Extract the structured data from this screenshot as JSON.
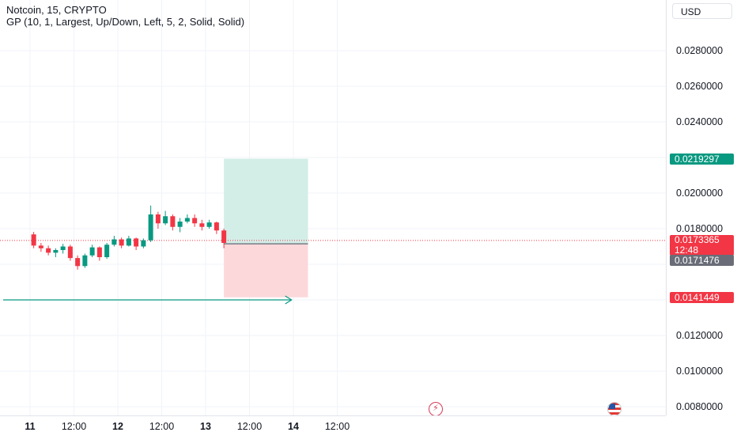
{
  "header": {
    "symbol_line": "Notcoin, 15, CRYPTO",
    "indicator_line": "GP (10, 1, Largest, Up/Down, Left, 5, 2, Solid, Solid)",
    "currency": "USD"
  },
  "colors": {
    "up": "#089981",
    "down": "#f23645",
    "profit_zone": "#d3ede7",
    "loss_zone": "#fcd8db",
    "current_tag": "#f23645",
    "entry_tag": "#6a6d78",
    "target_tag": "#089981",
    "stop_tag": "#f23645",
    "arrow_line": "#089981"
  },
  "price_axis": {
    "ticks": [
      "0.0280000",
      "0.0260000",
      "0.0240000",
      "0.0200000",
      "0.0180000",
      "0.0120000",
      "0.0100000",
      "0.0080000"
    ],
    "tags": {
      "target": "0.0219297",
      "current": "0.0173365",
      "countdown": "12:48",
      "entry": "0.0171476",
      "stop": "0.0141449"
    }
  },
  "time_axis": {
    "ticks": [
      {
        "label": "11",
        "bold": true
      },
      {
        "label": "12:00",
        "bold": false
      },
      {
        "label": "12",
        "bold": true
      },
      {
        "label": "12:00",
        "bold": false
      },
      {
        "label": "13",
        "bold": true
      },
      {
        "label": "12:00",
        "bold": false
      },
      {
        "label": "14",
        "bold": true
      },
      {
        "label": "12:00",
        "bold": false
      }
    ]
  },
  "events": {
    "flash_icon": "lightning-event-icon",
    "flag_icon": "us-flag-event-icon"
  },
  "chart_data": {
    "type": "candlestick",
    "price_range": [
      0.008,
      0.0292
    ],
    "x_start": "Nov 10 21:15",
    "interval_minutes": 15,
    "candles": [
      {
        "t": "11 00:00",
        "o": 0.01768,
        "h": 0.01782,
        "l": 0.0169,
        "c": 0.01705
      },
      {
        "t": "11 02:00",
        "o": 0.01705,
        "h": 0.0172,
        "l": 0.0167,
        "c": 0.0169
      },
      {
        "t": "11 04:00",
        "o": 0.0169,
        "h": 0.01705,
        "l": 0.0165,
        "c": 0.01665
      },
      {
        "t": "11 06:00",
        "o": 0.01665,
        "h": 0.0169,
        "l": 0.0164,
        "c": 0.0168
      },
      {
        "t": "11 08:00",
        "o": 0.0168,
        "h": 0.01715,
        "l": 0.0166,
        "c": 0.017
      },
      {
        "t": "11 10:00",
        "o": 0.017,
        "h": 0.0171,
        "l": 0.0162,
        "c": 0.01635
      },
      {
        "t": "11 12:00",
        "o": 0.01635,
        "h": 0.0165,
        "l": 0.0157,
        "c": 0.0159
      },
      {
        "t": "11 14:00",
        "o": 0.0159,
        "h": 0.0166,
        "l": 0.0158,
        "c": 0.0165
      },
      {
        "t": "11 16:00",
        "o": 0.0165,
        "h": 0.0171,
        "l": 0.0164,
        "c": 0.01695
      },
      {
        "t": "11 18:00",
        "o": 0.01695,
        "h": 0.017,
        "l": 0.0162,
        "c": 0.0164
      },
      {
        "t": "11 20:00",
        "o": 0.0164,
        "h": 0.0172,
        "l": 0.0163,
        "c": 0.0171
      },
      {
        "t": "11 22:00",
        "o": 0.0171,
        "h": 0.0176,
        "l": 0.017,
        "c": 0.0174
      },
      {
        "t": "12 00:00",
        "o": 0.0174,
        "h": 0.0175,
        "l": 0.0169,
        "c": 0.01705
      },
      {
        "t": "12 02:00",
        "o": 0.01705,
        "h": 0.0176,
        "l": 0.017,
        "c": 0.01745
      },
      {
        "t": "12 04:00",
        "o": 0.01745,
        "h": 0.0175,
        "l": 0.0168,
        "c": 0.017
      },
      {
        "t": "12 06:00",
        "o": 0.017,
        "h": 0.01745,
        "l": 0.0169,
        "c": 0.01735
      },
      {
        "t": "12 08:00",
        "o": 0.01735,
        "h": 0.0193,
        "l": 0.01725,
        "c": 0.0188
      },
      {
        "t": "12 10:00",
        "o": 0.0188,
        "h": 0.01895,
        "l": 0.018,
        "c": 0.0183
      },
      {
        "t": "12 12:00",
        "o": 0.0183,
        "h": 0.019,
        "l": 0.0182,
        "c": 0.0187
      },
      {
        "t": "12 14:00",
        "o": 0.0187,
        "h": 0.0188,
        "l": 0.0179,
        "c": 0.0181
      },
      {
        "t": "12 16:00",
        "o": 0.0181,
        "h": 0.0186,
        "l": 0.0178,
        "c": 0.0184
      },
      {
        "t": "12 18:00",
        "o": 0.0184,
        "h": 0.0188,
        "l": 0.0183,
        "c": 0.0186
      },
      {
        "t": "12 20:00",
        "o": 0.0186,
        "h": 0.0188,
        "l": 0.0181,
        "c": 0.0183
      },
      {
        "t": "12 22:00",
        "o": 0.0183,
        "h": 0.0185,
        "l": 0.0179,
        "c": 0.0181
      },
      {
        "t": "13 00:00",
        "o": 0.0181,
        "h": 0.0185,
        "l": 0.018,
        "c": 0.01835
      },
      {
        "t": "13 02:00",
        "o": 0.01835,
        "h": 0.0184,
        "l": 0.0177,
        "c": 0.0179
      },
      {
        "t": "13 04:00",
        "o": 0.0179,
        "h": 0.018,
        "l": 0.0169,
        "c": 0.0172
      }
    ],
    "position": {
      "type": "long",
      "entry": 0.0171476,
      "target": 0.0219297,
      "stop": 0.0141449,
      "start": "13 05:00",
      "end": "14 04:00"
    },
    "arrow_line": {
      "price": 0.014,
      "start": "Nov 10 21:15",
      "end": "13 23:30"
    },
    "current_price": 0.0173365
  }
}
